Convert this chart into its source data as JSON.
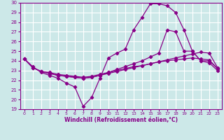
{
  "xlabel": "Windchill (Refroidissement éolien,°C)",
  "background_color": "#cce8e8",
  "grid_color": "#ffffff",
  "line_color": "#880088",
  "xlim": [
    -0.5,
    23.5
  ],
  "ylim": [
    19,
    30
  ],
  "xticks": [
    0,
    1,
    2,
    3,
    4,
    5,
    6,
    7,
    8,
    9,
    10,
    11,
    12,
    13,
    14,
    15,
    16,
    17,
    18,
    19,
    20,
    21,
    22,
    23
  ],
  "yticks": [
    19,
    20,
    21,
    22,
    23,
    24,
    25,
    26,
    27,
    28,
    29,
    30
  ],
  "line1_x": [
    0,
    1,
    2,
    3,
    4,
    5,
    6,
    7,
    8,
    9,
    10,
    11,
    12,
    13,
    14,
    15,
    16,
    17,
    18,
    19,
    20,
    21,
    22,
    23
  ],
  "line1_y": [
    24.2,
    23.4,
    22.8,
    22.5,
    22.2,
    21.7,
    21.3,
    19.3,
    20.2,
    22.2,
    24.3,
    24.8,
    25.2,
    27.2,
    28.5,
    29.9,
    29.9,
    29.7,
    29.0,
    27.2,
    25.0,
    24.0,
    23.8,
    23.0
  ],
  "line2_x": [
    0,
    1,
    2,
    3,
    4,
    5,
    6,
    7,
    8,
    9,
    10,
    11,
    12,
    13,
    14,
    15,
    16,
    17,
    18,
    19,
    20,
    21,
    22,
    23
  ],
  "line2_y": [
    24.2,
    23.3,
    22.9,
    22.7,
    22.5,
    22.4,
    22.3,
    22.2,
    22.3,
    22.5,
    22.8,
    23.1,
    23.4,
    23.7,
    24.0,
    24.4,
    24.8,
    27.2,
    27.0,
    25.0,
    25.0,
    24.0,
    24.0,
    23.2
  ],
  "line3_x": [
    0,
    1,
    2,
    3,
    4,
    5,
    6,
    7,
    8,
    9,
    10,
    11,
    12,
    13,
    14,
    15,
    16,
    17,
    18,
    19,
    20,
    21,
    22,
    23
  ],
  "line3_y": [
    24.2,
    23.3,
    22.9,
    22.7,
    22.5,
    22.4,
    22.3,
    22.2,
    22.3,
    22.5,
    22.7,
    22.9,
    23.1,
    23.3,
    23.5,
    23.7,
    23.9,
    24.1,
    24.3,
    24.5,
    24.7,
    24.9,
    24.8,
    23.3
  ],
  "line4_x": [
    0,
    1,
    2,
    3,
    4,
    5,
    6,
    7,
    8,
    9,
    10,
    11,
    12,
    13,
    14,
    15,
    16,
    17,
    18,
    19,
    20,
    21,
    22,
    23
  ],
  "line4_y": [
    24.2,
    23.3,
    22.9,
    22.8,
    22.6,
    22.5,
    22.4,
    22.3,
    22.4,
    22.6,
    22.8,
    23.0,
    23.2,
    23.4,
    23.5,
    23.7,
    23.9,
    24.0,
    24.1,
    24.2,
    24.3,
    24.2,
    24.1,
    23.2
  ]
}
